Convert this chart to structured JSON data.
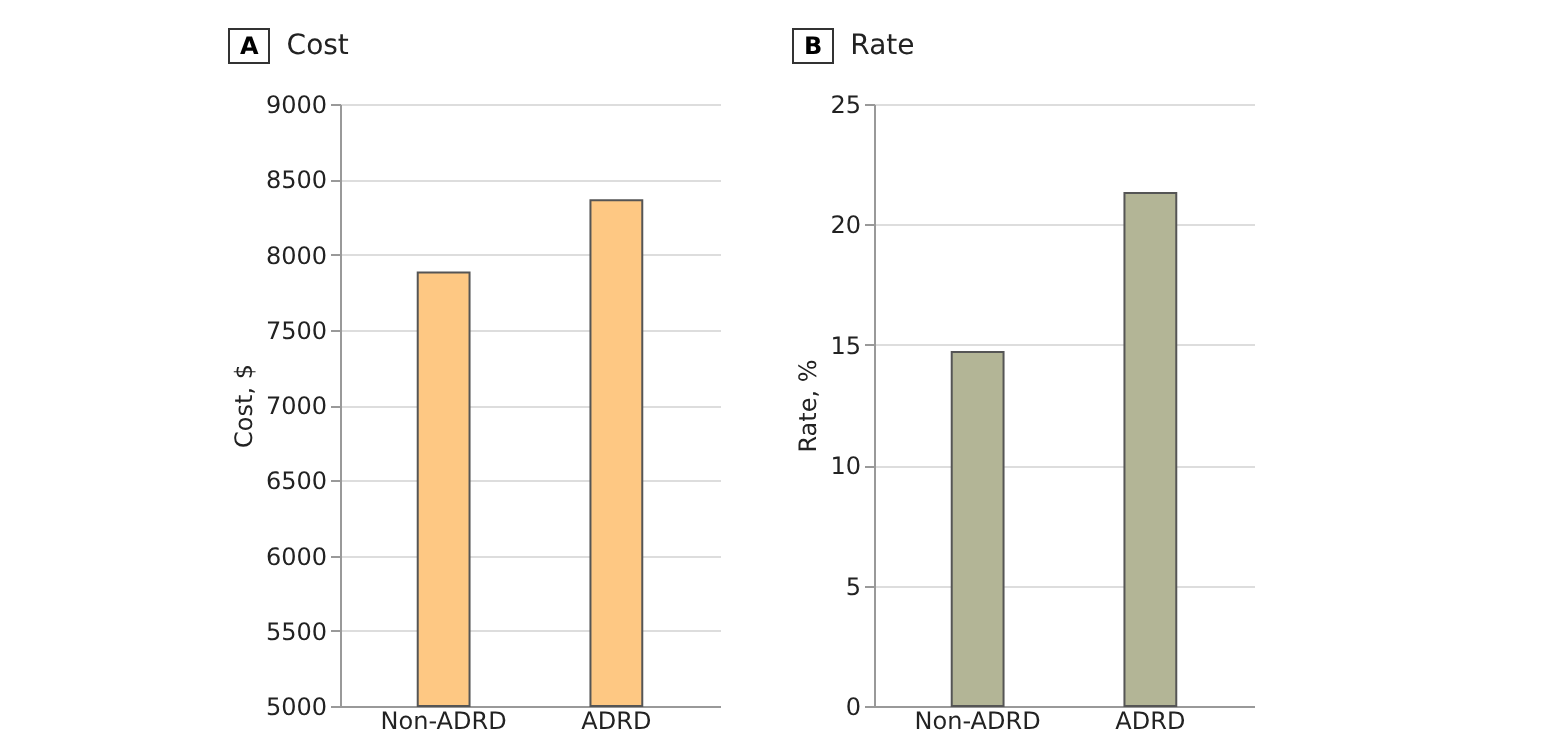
{
  "chart_data": [
    {
      "type": "bar",
      "title": "Cost",
      "annotations": [
        "A"
      ],
      "ylabel": "Cost, $",
      "categories": [
        "Non-ADRD",
        "ADRD"
      ],
      "values": [
        7880,
        8360
      ],
      "color": "#fec883",
      "ylim": [
        5000,
        9000
      ],
      "yticks": [
        5000,
        5500,
        6000,
        6500,
        7000,
        7500,
        8000,
        8500,
        9000
      ],
      "grid": "y"
    },
    {
      "type": "bar",
      "title": "Rate",
      "annotations": [
        "B"
      ],
      "ylabel": "Rate, %",
      "categories": [
        "Non-ADRD",
        "ADRD"
      ],
      "values": [
        14.7,
        21.3
      ],
      "color": "#b3b596",
      "ylim": [
        0,
        25
      ],
      "yticks": [
        0,
        5,
        10,
        15,
        20,
        25
      ],
      "grid": "y"
    }
  ]
}
